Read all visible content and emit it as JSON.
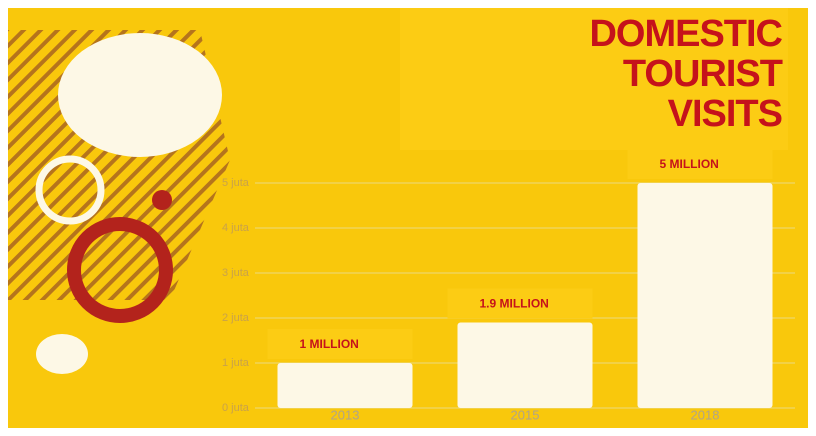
{
  "chart_data": {
    "type": "bar",
    "title": "DOMESTIC TOURIST VISITS",
    "categories": [
      "2013",
      "2015",
      "2018"
    ],
    "values": [
      1,
      1.9,
      5
    ],
    "value_labels": [
      "1 MILLION",
      "1.9 MILLION",
      "5 MILLION"
    ],
    "color": "#fdf8e6",
    "ylim": [
      0,
      5
    ],
    "yticks": [
      {
        "value": 0,
        "label": "0 juta"
      },
      {
        "value": 1,
        "label": "1 juta"
      },
      {
        "value": 2,
        "label": "2 juta"
      },
      {
        "value": 3,
        "label": "3 juta"
      },
      {
        "value": 4,
        "label": "4 juta"
      },
      {
        "value": 5,
        "label": "5 juta"
      }
    ],
    "grid": true
  }
}
